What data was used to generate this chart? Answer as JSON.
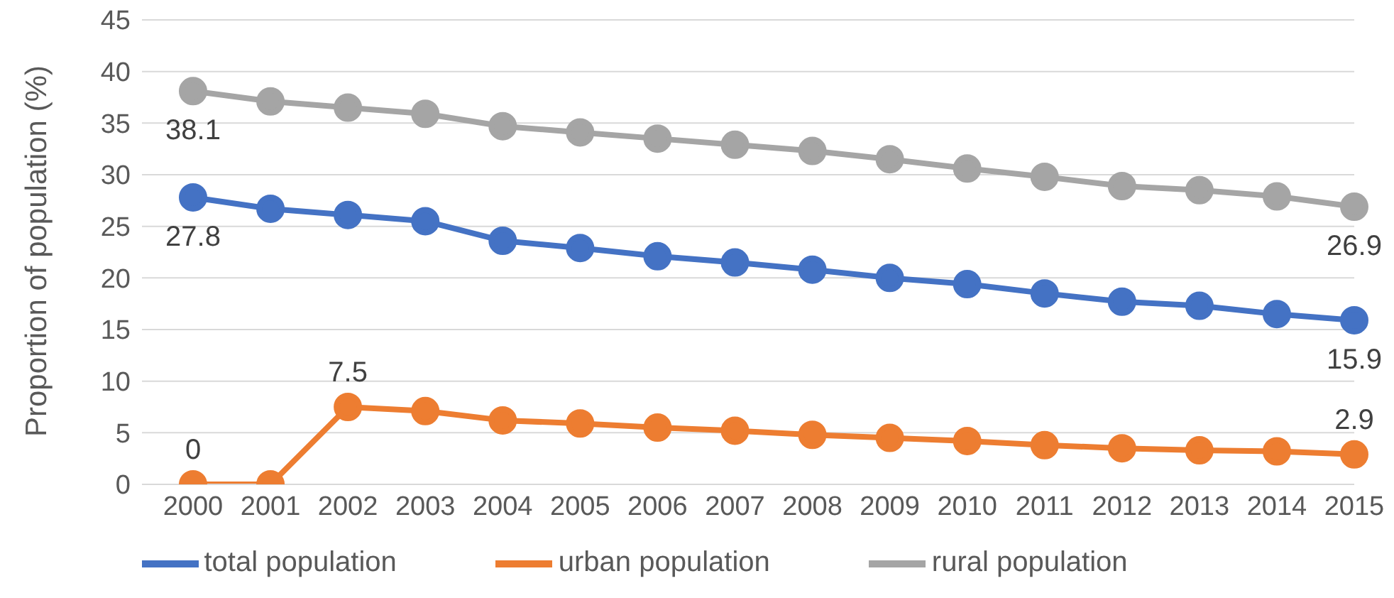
{
  "chart_data": {
    "type": "line",
    "ylabel": "Proportion of population (%)",
    "categories": [
      "2000",
      "2001",
      "2002",
      "2003",
      "2004",
      "2005",
      "2006",
      "2007",
      "2008",
      "2009",
      "2010",
      "2011",
      "2012",
      "2013",
      "2014",
      "2015"
    ],
    "series": [
      {
        "name": "total population",
        "color": "#4472c4",
        "values": [
          27.8,
          26.7,
          26.1,
          25.5,
          23.6,
          22.9,
          22.1,
          21.5,
          20.8,
          20.0,
          19.4,
          18.5,
          17.7,
          17.3,
          16.5,
          15.9
        ],
        "value_labels": [
          "27.8",
          null,
          null,
          null,
          null,
          null,
          null,
          null,
          null,
          null,
          null,
          null,
          null,
          null,
          null,
          "15.9"
        ]
      },
      {
        "name": "urban population",
        "color": "#ed7d31",
        "values": [
          0,
          0,
          7.5,
          7.1,
          6.2,
          5.9,
          5.5,
          5.2,
          4.8,
          4.5,
          4.2,
          3.8,
          3.5,
          3.3,
          3.2,
          2.9
        ],
        "value_labels": [
          "0",
          null,
          "7.5",
          null,
          null,
          null,
          null,
          null,
          null,
          null,
          null,
          null,
          null,
          null,
          null,
          "2.9"
        ]
      },
      {
        "name": "rural population",
        "color": "#a5a5a5",
        "values": [
          38.1,
          37.1,
          36.5,
          35.9,
          34.7,
          34.1,
          33.5,
          32.9,
          32.3,
          31.5,
          30.6,
          29.8,
          28.9,
          28.5,
          27.9,
          26.9
        ],
        "value_labels": [
          "38.1",
          null,
          null,
          null,
          null,
          null,
          null,
          null,
          null,
          null,
          null,
          null,
          null,
          null,
          null,
          "26.9"
        ]
      }
    ],
    "ylim": [
      0,
      45
    ],
    "yticks": [
      0,
      5,
      10,
      15,
      20,
      25,
      30,
      35,
      40,
      45
    ],
    "grid": "y",
    "legend": "bottom",
    "marker": "circle",
    "line_style": "solid"
  }
}
